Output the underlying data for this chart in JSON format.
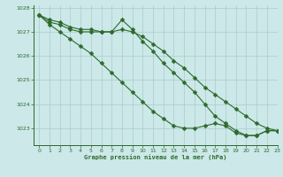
{
  "title": "Graphe pression niveau de la mer (hPa)",
  "bg_color": "#cce8e8",
  "grid_color": "#aacccc",
  "line_color": "#2d6a2d",
  "xlim": [
    -0.5,
    23
  ],
  "ylim": [
    1022.3,
    1028.1
  ],
  "yticks": [
    1023,
    1024,
    1025,
    1026,
    1027,
    1028
  ],
  "xticks": [
    0,
    1,
    2,
    3,
    4,
    5,
    6,
    7,
    8,
    9,
    10,
    11,
    12,
    13,
    14,
    15,
    16,
    17,
    18,
    19,
    20,
    21,
    22,
    23
  ],
  "series1": {
    "x": [
      0,
      1,
      2,
      3,
      4,
      5,
      6,
      7,
      8,
      9,
      10,
      11,
      12,
      13,
      14,
      15,
      16,
      17,
      18,
      19,
      20,
      21,
      22,
      23
    ],
    "y": [
      1027.7,
      1027.5,
      1027.4,
      1027.2,
      1027.1,
      1027.1,
      1027.0,
      1027.0,
      1027.1,
      1027.0,
      1026.8,
      1026.5,
      1026.2,
      1025.8,
      1025.5,
      1025.1,
      1024.7,
      1024.4,
      1024.1,
      1023.8,
      1023.5,
      1023.2,
      1023.0,
      1022.9
    ]
  },
  "series2": {
    "x": [
      0,
      1,
      2,
      3,
      4,
      5,
      6,
      7,
      8,
      9,
      10,
      11,
      12,
      13,
      14,
      15,
      16,
      17,
      18,
      19,
      20,
      21,
      22,
      23
    ],
    "y": [
      1027.7,
      1027.4,
      1027.3,
      1027.1,
      1027.0,
      1027.0,
      1027.0,
      1027.0,
      1027.5,
      1027.1,
      1026.6,
      1026.2,
      1025.7,
      1025.3,
      1024.9,
      1024.5,
      1024.0,
      1023.5,
      1023.2,
      1022.9,
      1022.7,
      1022.7,
      1022.9,
      1022.9
    ]
  },
  "series3": {
    "x": [
      0,
      1,
      2,
      3,
      4,
      5,
      6,
      7,
      8,
      9,
      10,
      11,
      12,
      13,
      14,
      15,
      16,
      17,
      18,
      19,
      20,
      21,
      22,
      23
    ],
    "y": [
      1027.7,
      1027.3,
      1027.0,
      1026.7,
      1026.4,
      1026.1,
      1025.7,
      1025.3,
      1024.9,
      1024.5,
      1024.1,
      1023.7,
      1023.4,
      1023.1,
      1023.0,
      1023.0,
      1023.1,
      1023.2,
      1023.1,
      1022.8,
      1022.7,
      1022.7,
      1022.9,
      1022.9
    ]
  }
}
